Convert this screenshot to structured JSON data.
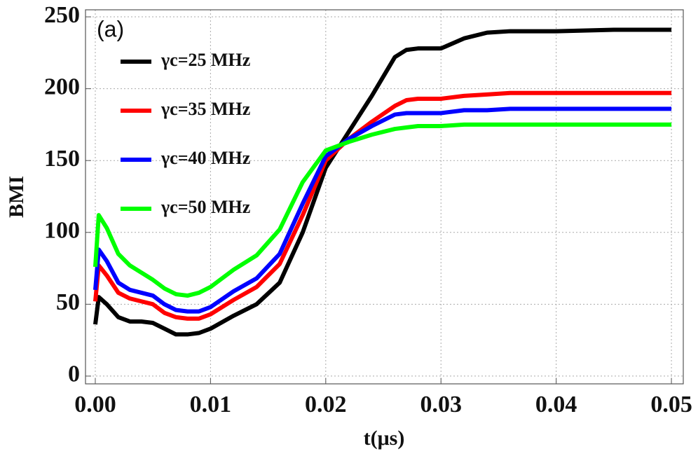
{
  "chart_data": {
    "type": "line",
    "annotation": "(a)",
    "x_label": "t(μs)",
    "y_label": "BMI",
    "x": [
      0,
      0.0003,
      0.001,
      0.002,
      0.003,
      0.004,
      0.005,
      0.006,
      0.007,
      0.008,
      0.009,
      0.01,
      0.012,
      0.014,
      0.016,
      0.018,
      0.02,
      0.022,
      0.024,
      0.026,
      0.027,
      0.028,
      0.03,
      0.032,
      0.034,
      0.036,
      0.04,
      0.045,
      0.05
    ],
    "series": [
      {
        "name": "γc=25 MHz",
        "color": "#000000",
        "values": [
          36,
          55,
          50,
          41,
          38,
          38,
          37,
          33,
          29,
          29,
          30,
          33,
          42,
          50,
          65,
          100,
          145,
          170,
          195,
          222,
          227,
          228,
          228,
          235,
          239,
          240,
          240,
          241,
          241
        ]
      },
      {
        "name": "γc=35 MHz",
        "color": "#ff0000",
        "values": [
          52,
          77,
          70,
          58,
          54,
          52,
          50,
          44,
          41,
          40,
          40,
          43,
          53,
          62,
          78,
          112,
          150,
          165,
          177,
          188,
          192,
          193,
          193,
          195,
          196,
          197,
          197,
          197,
          197
        ]
      },
      {
        "name": "γc=40 MHz",
        "color": "#0000ff",
        "values": [
          60,
          88,
          80,
          65,
          60,
          58,
          56,
          50,
          46,
          45,
          45,
          48,
          59,
          68,
          85,
          120,
          153,
          165,
          174,
          182,
          183,
          183,
          183,
          185,
          185,
          186,
          186,
          186,
          186
        ]
      },
      {
        "name": "γc=50 MHz",
        "color": "#00ff00",
        "values": [
          76,
          112,
          103,
          85,
          77,
          72,
          67,
          61,
          57,
          56,
          58,
          62,
          74,
          84,
          102,
          135,
          157,
          163,
          168,
          172,
          173,
          174,
          174,
          175,
          175,
          175,
          175,
          175,
          175
        ]
      }
    ],
    "xlim": [
      -0.00085,
      0.05103
    ],
    "ylim": [
      -5.4,
      254.9
    ],
    "xticks": [
      {
        "value": 0,
        "label": "0.00"
      },
      0.01,
      0.02,
      0.03,
      0.04,
      0.05
    ],
    "yticks": [
      0,
      50,
      100,
      150,
      200,
      250
    ],
    "grid": true
  }
}
